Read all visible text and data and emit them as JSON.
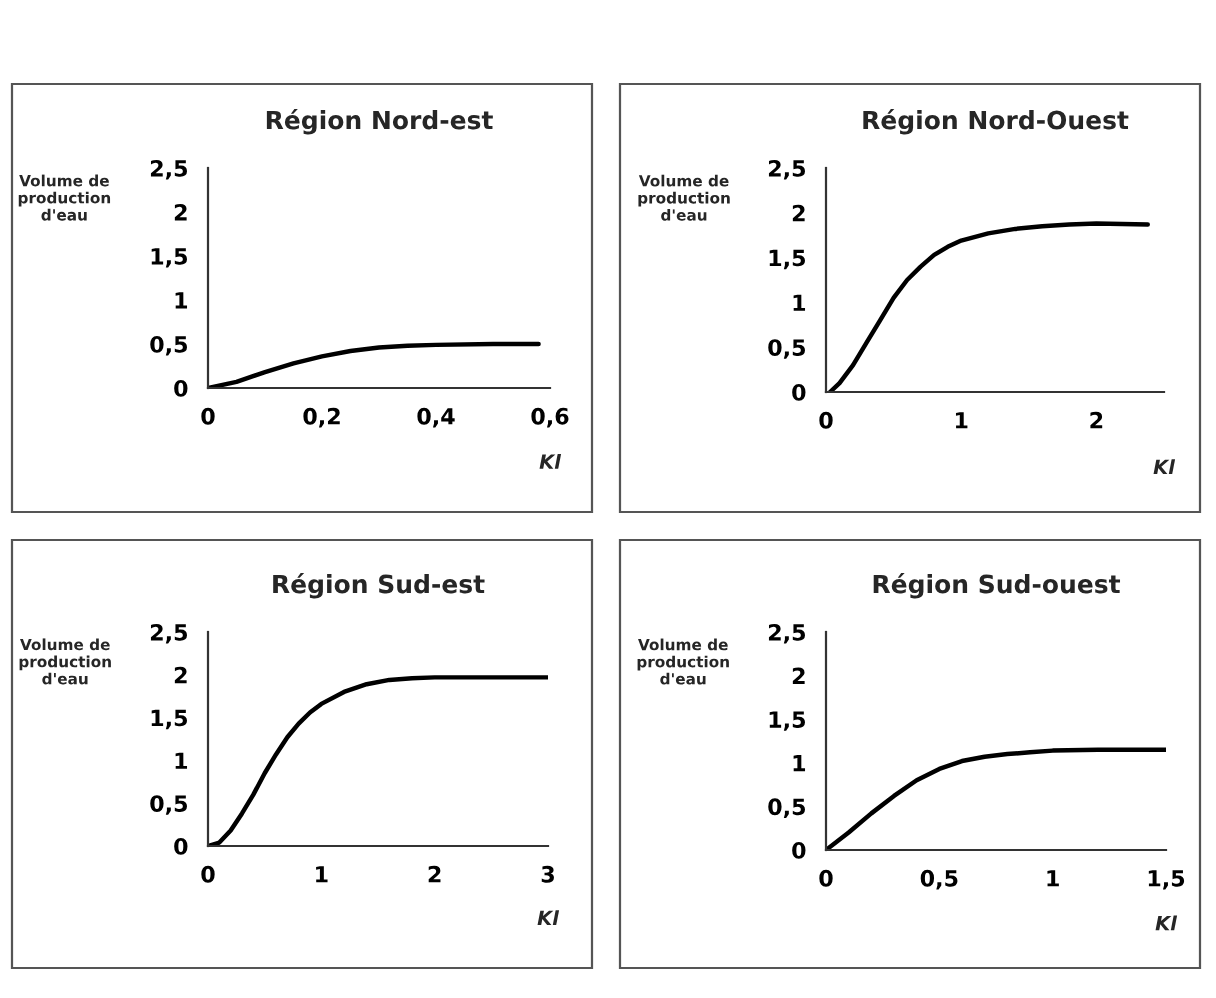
{
  "chart_data": [
    {
      "type": "line",
      "title": "Région Nord-est",
      "ylabel": "Volume de production d'eau",
      "xlabel": "Kl",
      "grid": false,
      "legend": false,
      "marker": "none",
      "line_style": "solid",
      "xlim": [
        0,
        0.6
      ],
      "xticks": [
        0,
        {
          "value": 0.2,
          "label": "0,2"
        },
        {
          "value": 0.4,
          "label": "0,4"
        },
        {
          "value": 0.6,
          "label": "0,6"
        }
      ],
      "ylim": [
        0,
        2.5
      ],
      "yticks": [
        0,
        {
          "value": 0.5,
          "label": "0,5"
        },
        1,
        {
          "value": 1.5,
          "label": "1,5"
        },
        2,
        {
          "value": 2.5,
          "label": "2,5"
        }
      ],
      "series": [
        {
          "color": "#000000",
          "x": [
            0,
            0.05,
            0.1,
            0.15,
            0.2,
            0.25,
            0.3,
            0.35,
            0.4,
            0.5,
            0.58
          ],
          "values": [
            0,
            0.07,
            0.18,
            0.28,
            0.36,
            0.42,
            0.46,
            0.48,
            0.49,
            0.5,
            0.5
          ]
        }
      ]
    },
    {
      "type": "line",
      "title": "Région Nord-Ouest",
      "ylabel": "Volume de production d'eau",
      "xlabel": "Kl",
      "grid": false,
      "legend": false,
      "marker": "none",
      "line_style": "solid",
      "xlim": [
        0,
        2.5
      ],
      "xticks": [
        0,
        1,
        2
      ],
      "ylim": [
        0,
        2.5
      ],
      "yticks": [
        0,
        {
          "value": 0.5,
          "label": "0,5"
        },
        1,
        {
          "value": 1.5,
          "label": "1,5"
        },
        2,
        {
          "value": 2.5,
          "label": "2,5"
        }
      ],
      "series": [
        {
          "color": "#000000",
          "x": [
            0.03,
            0.1,
            0.2,
            0.3,
            0.4,
            0.5,
            0.6,
            0.7,
            0.8,
            0.9,
            1.0,
            1.2,
            1.4,
            1.6,
            1.8,
            2.0,
            2.38
          ],
          "values": [
            0,
            0.1,
            0.3,
            0.55,
            0.8,
            1.05,
            1.25,
            1.4,
            1.53,
            1.62,
            1.69,
            1.77,
            1.82,
            1.85,
            1.87,
            1.88,
            1.87
          ]
        }
      ]
    },
    {
      "type": "line",
      "title": "Région Sud-est",
      "ylabel": "Volume de production d'eau",
      "xlabel": "Kl",
      "grid": false,
      "legend": false,
      "marker": "none",
      "line_style": "solid",
      "xlim": [
        0,
        3
      ],
      "xticks": [
        0,
        1,
        2,
        3
      ],
      "ylim": [
        0,
        2.5
      ],
      "yticks": [
        0,
        {
          "value": 0.5,
          "label": "0,5"
        },
        1,
        {
          "value": 1.5,
          "label": "1,5"
        },
        2,
        {
          "value": 2.5,
          "label": "2,5"
        }
      ],
      "series": [
        {
          "color": "#000000",
          "x": [
            0,
            0.1,
            0.2,
            0.3,
            0.4,
            0.5,
            0.6,
            0.7,
            0.8,
            0.9,
            1.0,
            1.2,
            1.4,
            1.6,
            1.8,
            2.0,
            2.5,
            3.0
          ],
          "values": [
            0,
            0.04,
            0.18,
            0.38,
            0.6,
            0.85,
            1.07,
            1.27,
            1.43,
            1.56,
            1.66,
            1.8,
            1.89,
            1.94,
            1.96,
            1.97,
            1.97,
            1.97
          ]
        }
      ]
    },
    {
      "type": "line",
      "title": "Région Sud-ouest",
      "ylabel": "Volume de production d'eau",
      "xlabel": "Kl",
      "grid": false,
      "legend": false,
      "marker": "none",
      "line_style": "solid",
      "xlim": [
        0,
        1.5
      ],
      "xticks": [
        0,
        {
          "value": 0.5,
          "label": "0,5"
        },
        1,
        {
          "value": 1.5,
          "label": "1,5"
        }
      ],
      "ylim": [
        0,
        2.5
      ],
      "yticks": [
        0,
        {
          "value": 0.5,
          "label": "0,5"
        },
        1,
        {
          "value": 1.5,
          "label": "1,5"
        },
        2,
        {
          "value": 2.5,
          "label": "2,5"
        }
      ],
      "series": [
        {
          "color": "#000000",
          "x": [
            0,
            0.1,
            0.2,
            0.3,
            0.4,
            0.5,
            0.6,
            0.7,
            0.8,
            0.9,
            1.0,
            1.2,
            1.5
          ],
          "values": [
            0,
            0.2,
            0.42,
            0.62,
            0.8,
            0.93,
            1.02,
            1.07,
            1.1,
            1.12,
            1.14,
            1.15,
            1.15
          ]
        }
      ]
    }
  ]
}
